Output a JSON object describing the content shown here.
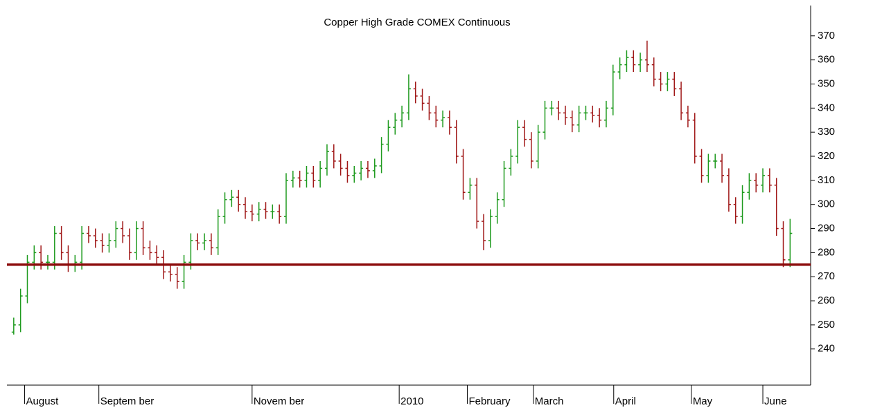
{
  "chart_data": {
    "type": "ohlc",
    "title": "Copper High Grade COMEX Continuous",
    "up_color": "#1e9a1e",
    "down_color": "#a01818",
    "reference_line": {
      "value": 275,
      "color": "#8b0a0a"
    },
    "ylim": [
      225,
      382
    ],
    "yticks": [
      240,
      250,
      260,
      270,
      280,
      290,
      300,
      310,
      320,
      330,
      340,
      350,
      360,
      370
    ],
    "xlim": [
      -1,
      116
    ],
    "xticks": [
      {
        "value": 1.6,
        "label": "August"
      },
      {
        "value": 12.5,
        "label": "Septem ber"
      },
      {
        "value": 35,
        "label": "Novem ber"
      },
      {
        "value": 56.6,
        "label": "2010"
      },
      {
        "value": 66.6,
        "label": "February"
      },
      {
        "value": 76.3,
        "label": "March"
      },
      {
        "value": 88.1,
        "label": "April"
      },
      {
        "value": 99.5,
        "label": "May"
      },
      {
        "value": 110,
        "label": "June"
      }
    ],
    "open": [
      247,
      250,
      262,
      276,
      280,
      276,
      276,
      288,
      280,
      275,
      276,
      288,
      287,
      285,
      283,
      285,
      290,
      287,
      280,
      290,
      282,
      280,
      278,
      272,
      271,
      268,
      276,
      285,
      284,
      285,
      282,
      295,
      302,
      303,
      300,
      297,
      296,
      298,
      297,
      297,
      295,
      310,
      311,
      310,
      313,
      310,
      315,
      322,
      318,
      315,
      312,
      313,
      315,
      314,
      316,
      325,
      332,
      335,
      338,
      348,
      345,
      342,
      338,
      335,
      336,
      332,
      320,
      305,
      308,
      293,
      285,
      295,
      302,
      315,
      320,
      332,
      327,
      318,
      330,
      340,
      340,
      338,
      336,
      333,
      338,
      338,
      337,
      335,
      340,
      355,
      358,
      361,
      358,
      360,
      358,
      352,
      350,
      352,
      348,
      338,
      335,
      320,
      312,
      318,
      318,
      312,
      300,
      295,
      305,
      310,
      308,
      312,
      308,
      290,
      277
    ],
    "high": [
      253,
      265,
      279,
      283,
      283,
      279,
      291,
      291,
      283,
      279,
      291,
      291,
      290,
      288,
      288,
      293,
      293,
      290,
      293,
      293,
      285,
      283,
      281,
      275,
      274,
      279,
      288,
      288,
      288,
      288,
      298,
      305,
      306,
      306,
      303,
      300,
      301,
      301,
      300,
      300,
      313,
      314,
      314,
      316,
      316,
      318,
      325,
      325,
      321,
      318,
      316,
      318,
      318,
      319,
      328,
      335,
      338,
      341,
      354,
      351,
      348,
      345,
      341,
      339,
      339,
      335,
      323,
      311,
      311,
      296,
      298,
      305,
      318,
      323,
      335,
      335,
      330,
      333,
      343,
      343,
      343,
      341,
      339,
      341,
      341,
      341,
      340,
      343,
      358,
      361,
      364,
      364,
      363,
      368,
      361,
      355,
      355,
      355,
      351,
      341,
      338,
      323,
      321,
      321,
      321,
      315,
      303,
      308,
      313,
      313,
      315,
      315,
      311,
      293,
      294
    ],
    "low": [
      246,
      247,
      259,
      273,
      273,
      273,
      273,
      277,
      272,
      272,
      273,
      284,
      282,
      280,
      280,
      282,
      284,
      277,
      277,
      279,
      277,
      275,
      269,
      268,
      265,
      265,
      273,
      281,
      281,
      279,
      279,
      292,
      299,
      297,
      294,
      293,
      293,
      294,
      294,
      292,
      292,
      307,
      307,
      307,
      307,
      307,
      312,
      315,
      312,
      309,
      309,
      310,
      311,
      311,
      313,
      322,
      329,
      332,
      335,
      342,
      339,
      335,
      332,
      332,
      329,
      317,
      302,
      302,
      290,
      281,
      282,
      292,
      299,
      312,
      317,
      324,
      315,
      315,
      327,
      337,
      335,
      333,
      330,
      330,
      335,
      334,
      332,
      332,
      337,
      352,
      355,
      355,
      355,
      355,
      349,
      347,
      347,
      345,
      335,
      332,
      317,
      309,
      309,
      315,
      309,
      297,
      292,
      292,
      302,
      305,
      305,
      305,
      287,
      274,
      274
    ],
    "close": [
      250,
      262,
      276,
      280,
      276,
      276,
      288,
      280,
      275,
      276,
      288,
      287,
      285,
      283,
      285,
      290,
      287,
      280,
      290,
      282,
      280,
      278,
      272,
      271,
      268,
      276,
      285,
      284,
      285,
      282,
      295,
      302,
      303,
      300,
      297,
      296,
      298,
      297,
      297,
      295,
      310,
      311,
      310,
      313,
      310,
      315,
      322,
      318,
      315,
      312,
      313,
      315,
      314,
      316,
      325,
      332,
      335,
      338,
      348,
      345,
      342,
      338,
      335,
      336,
      332,
      320,
      305,
      308,
      293,
      285,
      295,
      302,
      315,
      320,
      332,
      327,
      318,
      330,
      340,
      340,
      338,
      336,
      333,
      338,
      338,
      337,
      335,
      340,
      355,
      358,
      361,
      358,
      360,
      358,
      352,
      350,
      352,
      348,
      338,
      335,
      320,
      312,
      318,
      318,
      312,
      300,
      295,
      305,
      310,
      308,
      312,
      308,
      290,
      277,
      288
    ]
  }
}
